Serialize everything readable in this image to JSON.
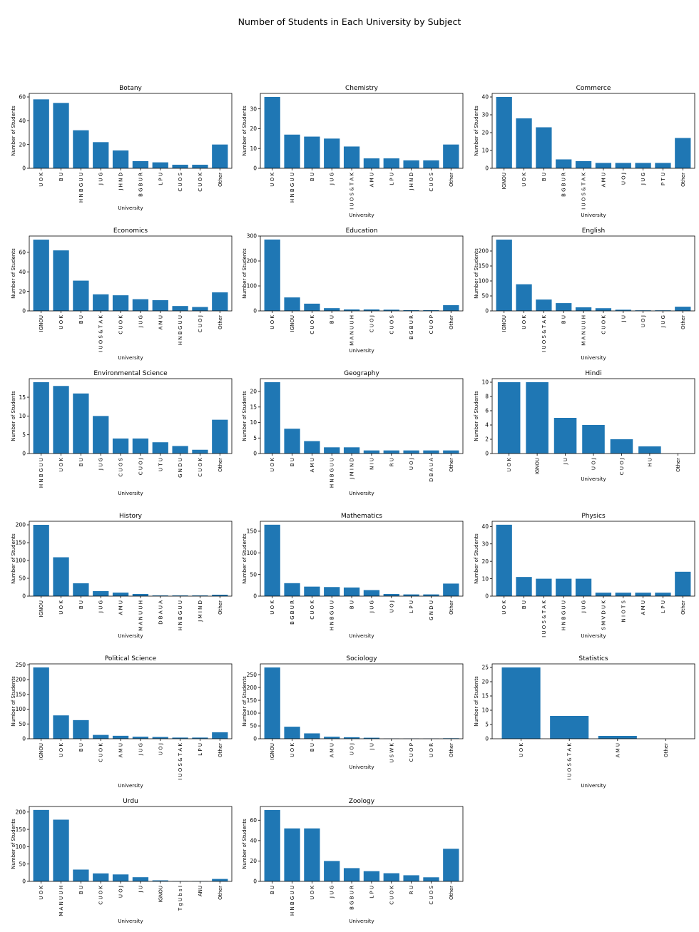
{
  "chart_data": {
    "title": "Number of Students in Each University by Subject",
    "type": "bar",
    "bar_color": "#1f77b4",
    "xlabel": "University",
    "ylabel": "Number of Students",
    "subplots": [
      {
        "title": "Botany",
        "categories": [
          "U O K",
          "B U",
          "H N B G U U",
          "J U G",
          "J H N D",
          "B G B U R",
          "L P U",
          "C U O S",
          "C U O K",
          "Other"
        ],
        "values": [
          58,
          55,
          32,
          22,
          15,
          6,
          5,
          3,
          3,
          20
        ],
        "ylim": [
          0,
          63
        ],
        "yticks": [
          0,
          20,
          40,
          60
        ]
      },
      {
        "title": "Chemistry",
        "categories": [
          "U O K",
          "H N B G U U",
          "B U",
          "J U G",
          "I U O S & T A K",
          "A M U",
          "L P U",
          "J H N D",
          "C U O S",
          "Other"
        ],
        "values": [
          36,
          17,
          16,
          15,
          11,
          5,
          5,
          4,
          4,
          12
        ],
        "ylim": [
          0,
          37.8
        ],
        "yticks": [
          0,
          10,
          20,
          30
        ]
      },
      {
        "title": "Commerce",
        "categories": [
          "IGNOU",
          "U O K",
          "B U",
          "B G B U R",
          "I U O S & T A K",
          "A M U",
          "U O J",
          "J U G",
          "P T U",
          "Other"
        ],
        "values": [
          40,
          28,
          23,
          5,
          4,
          3,
          3,
          3,
          3,
          17
        ],
        "ylim": [
          0,
          42
        ],
        "yticks": [
          0,
          10,
          20,
          30,
          40
        ]
      },
      {
        "title": "Economics",
        "categories": [
          "IGNOU",
          "U O K",
          "B U",
          "I U O S & T A K",
          "C U O K",
          "J U G",
          "A M U",
          "H N B G U U",
          "C U O J",
          "Other"
        ],
        "values": [
          73,
          62,
          31,
          17,
          16,
          12,
          11,
          5,
          4,
          19
        ],
        "ylim": [
          0,
          76.7
        ],
        "yticks": [
          0,
          20,
          40,
          60
        ]
      },
      {
        "title": "Education",
        "categories": [
          "U O K",
          "IGNOU",
          "C U O K",
          "B U",
          "M A N U U H",
          "C U O J",
          "C U O S",
          "B G B U R",
          "C U O P",
          "Other"
        ],
        "values": [
          286,
          54,
          29,
          11,
          6,
          6,
          5,
          3,
          3,
          23
        ],
        "ylim": [
          0,
          300
        ],
        "yticks": [
          0,
          100,
          200,
          300
        ]
      },
      {
        "title": "English",
        "categories": [
          "IGNOU",
          "U O K",
          "I U O S & T A K",
          "B U",
          "M A N U U H",
          "C U O K",
          "J U",
          "U O J",
          "J U G",
          "Other"
        ],
        "values": [
          238,
          89,
          38,
          26,
          12,
          9,
          4,
          2,
          2,
          14
        ],
        "ylim": [
          0,
          250
        ],
        "yticks": [
          0,
          50,
          100,
          150,
          200
        ]
      },
      {
        "title": "Environmental Science",
        "categories": [
          "H N B G U U",
          "U O K",
          "B U",
          "J U G",
          "C U O S",
          "C U O J",
          "U T U",
          "G N D U",
          "C U O K",
          "Other"
        ],
        "values": [
          19,
          18,
          16,
          10,
          4,
          4,
          3,
          2,
          1,
          9
        ],
        "ylim": [
          0,
          19.95
        ],
        "yticks": [
          0,
          5,
          10,
          15
        ]
      },
      {
        "title": "Geography",
        "categories": [
          "U O K",
          "B U",
          "A M U",
          "H N B G U U",
          "J M I N D",
          "N I U",
          "R U",
          "U O J",
          "D B A U A",
          "Other"
        ],
        "values": [
          23,
          8,
          4,
          2,
          2,
          1,
          1,
          1,
          1,
          1
        ],
        "ylim": [
          0,
          24.15
        ],
        "yticks": [
          0,
          5,
          10,
          15,
          20
        ]
      },
      {
        "title": "Hindi",
        "categories": [
          "U O K",
          "IGNOU",
          "J U",
          "U O J",
          "C U O J",
          "H U",
          "Other"
        ],
        "values": [
          10,
          10,
          5,
          4,
          2,
          1,
          0
        ],
        "ylim": [
          0,
          10.5
        ],
        "yticks": [
          0,
          2,
          4,
          6,
          8,
          10
        ]
      },
      {
        "title": "History",
        "categories": [
          "IGNOU",
          "U O K",
          "B U",
          "J U G",
          "A M U",
          "M A N U U H",
          "D B A U A",
          "H N B G U U",
          "J M I N D",
          "Other"
        ],
        "values": [
          200,
          109,
          36,
          14,
          10,
          6,
          2,
          2,
          2,
          4
        ],
        "ylim": [
          0,
          210
        ],
        "yticks": [
          0,
          50,
          100,
          150,
          200
        ]
      },
      {
        "title": "Mathematics",
        "categories": [
          "U O K",
          "B G B U R",
          "C U O K",
          "H N B G U U",
          "B U",
          "J U G",
          "U O J",
          "L P U",
          "G N D U",
          "Other"
        ],
        "values": [
          165,
          30,
          22,
          21,
          20,
          14,
          5,
          4,
          4,
          29
        ],
        "ylim": [
          0,
          173
        ],
        "yticks": [
          0,
          50,
          100,
          150
        ]
      },
      {
        "title": "Physics",
        "categories": [
          "U O K",
          "B U",
          "I U O S & T A K",
          "H N B G U U",
          "J U G",
          "S M V D U K",
          "N I O T S",
          "A M U",
          "L P U",
          "Other"
        ],
        "values": [
          41,
          11,
          10,
          10,
          10,
          2,
          2,
          2,
          2,
          14
        ],
        "ylim": [
          0,
          43
        ],
        "yticks": [
          0,
          10,
          20,
          30,
          40
        ]
      },
      {
        "title": "Political Science",
        "categories": [
          "IGNOU",
          "U O K",
          "B U",
          "C U O K",
          "A M U",
          "J U G",
          "U O J",
          "I U O S & T A K",
          "L P U",
          "Other"
        ],
        "values": [
          241,
          79,
          63,
          13,
          10,
          7,
          6,
          4,
          4,
          22
        ],
        "ylim": [
          0,
          253
        ],
        "yticks": [
          0,
          50,
          100,
          150,
          200,
          250
        ]
      },
      {
        "title": "Sociology",
        "categories": [
          "IGNOU",
          "U O K",
          "B U",
          "A M U",
          "U O J",
          "J U",
          "U S W K",
          "C U O P",
          "U O R",
          "Other"
        ],
        "values": [
          278,
          47,
          21,
          8,
          6,
          4,
          1,
          1,
          1,
          2
        ],
        "ylim": [
          0,
          292
        ],
        "yticks": [
          0,
          50,
          100,
          150,
          200,
          250
        ]
      },
      {
        "title": "Statistics",
        "categories": [
          "U O K",
          "I U O S & T A K",
          "A M U",
          "Other"
        ],
        "values": [
          25,
          8,
          1,
          0
        ],
        "ylim": [
          0,
          26.25
        ],
        "yticks": [
          0,
          5,
          10,
          15,
          20,
          25
        ]
      },
      {
        "title": "Urdu",
        "categories": [
          "U O K",
          "M A N U U H",
          "B U",
          "C U O K",
          "U O J",
          "J U",
          "IGNOU",
          "T g U b s I",
          "ANU",
          "Other"
        ],
        "values": [
          206,
          178,
          34,
          23,
          20,
          12,
          3,
          1,
          1,
          7
        ],
        "ylim": [
          0,
          216
        ],
        "yticks": [
          0,
          50,
          100,
          150,
          200
        ]
      },
      {
        "title": "Zoology",
        "categories": [
          "B U",
          "H N B G U U",
          "U O K",
          "J U G",
          "B G B U R",
          "L P U",
          "C U O K",
          "R U",
          "C U O S",
          "Other"
        ],
        "values": [
          70,
          52,
          52,
          20,
          13,
          10,
          8,
          6,
          4,
          32
        ],
        "ylim": [
          0,
          73.5
        ],
        "yticks": [
          0,
          20,
          40,
          60
        ]
      }
    ]
  }
}
